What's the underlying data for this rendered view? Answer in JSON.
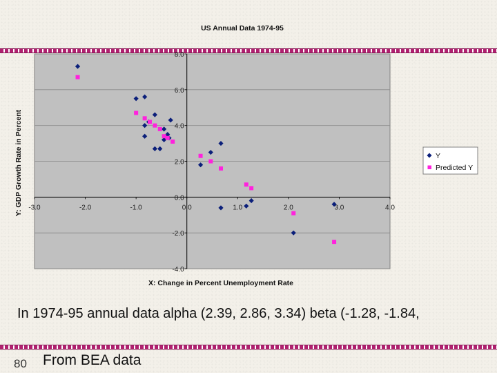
{
  "chart_data": {
    "type": "scatter",
    "title": "US Annual Data 1974-95",
    "xlabel": "X: Change in Percent Unemployment Rate",
    "ylabel": "Y: GDP Growth Rate in Percent",
    "xlim": [
      -3.0,
      4.0
    ],
    "ylim": [
      -4.0,
      8.0
    ],
    "xticks": [
      "-3.0",
      "-2.0",
      "-1.0",
      "0.0",
      "1.0",
      "2.0",
      "3.0",
      "4.0"
    ],
    "yticks": [
      "-4.0",
      "-2.0",
      "0.0",
      "2.0",
      "4.0",
      "6.0",
      "8.0"
    ],
    "grid": "horizontal",
    "legend_position": "right",
    "series": [
      {
        "name": "Y",
        "color": "#0b1f7a",
        "marker": "diamond",
        "points": [
          [
            -2.15,
            7.3
          ],
          [
            -1.0,
            5.5
          ],
          [
            -0.83,
            5.6
          ],
          [
            -0.83,
            4.0
          ],
          [
            -0.75,
            4.2
          ],
          [
            -0.63,
            4.6
          ],
          [
            -0.32,
            4.3
          ],
          [
            -0.45,
            3.8
          ],
          [
            -0.38,
            3.5
          ],
          [
            -0.35,
            3.3
          ],
          [
            -0.45,
            3.2
          ],
          [
            -0.83,
            3.4
          ],
          [
            -0.63,
            2.7
          ],
          [
            -0.53,
            2.7
          ],
          [
            0.27,
            1.8
          ],
          [
            0.47,
            2.5
          ],
          [
            0.67,
            3.0
          ],
          [
            0.67,
            -0.6
          ],
          [
            1.17,
            -0.5
          ],
          [
            1.27,
            -0.2
          ],
          [
            2.1,
            -2.0
          ],
          [
            2.9,
            -0.4
          ]
        ]
      },
      {
        "name": "Predicted Y",
        "color": "#ff22dd",
        "marker": "square",
        "points": [
          [
            -2.15,
            6.7
          ],
          [
            -1.0,
            4.7
          ],
          [
            -0.83,
            4.4
          ],
          [
            -0.73,
            4.2
          ],
          [
            -0.63,
            4.0
          ],
          [
            -0.53,
            3.8
          ],
          [
            -0.45,
            3.4
          ],
          [
            -0.38,
            3.3
          ],
          [
            -0.28,
            3.1
          ],
          [
            0.27,
            2.3
          ],
          [
            0.47,
            2.0
          ],
          [
            0.67,
            1.6
          ],
          [
            1.17,
            0.7
          ],
          [
            1.27,
            0.5
          ],
          [
            2.1,
            -0.9
          ],
          [
            2.9,
            -2.5
          ]
        ]
      }
    ]
  },
  "caption": "In 1974-95 annual data alpha (2.39, 2.86, 3.34) beta (-1.28, -1.84,",
  "slide_number": "80",
  "source_note": "From BEA data"
}
